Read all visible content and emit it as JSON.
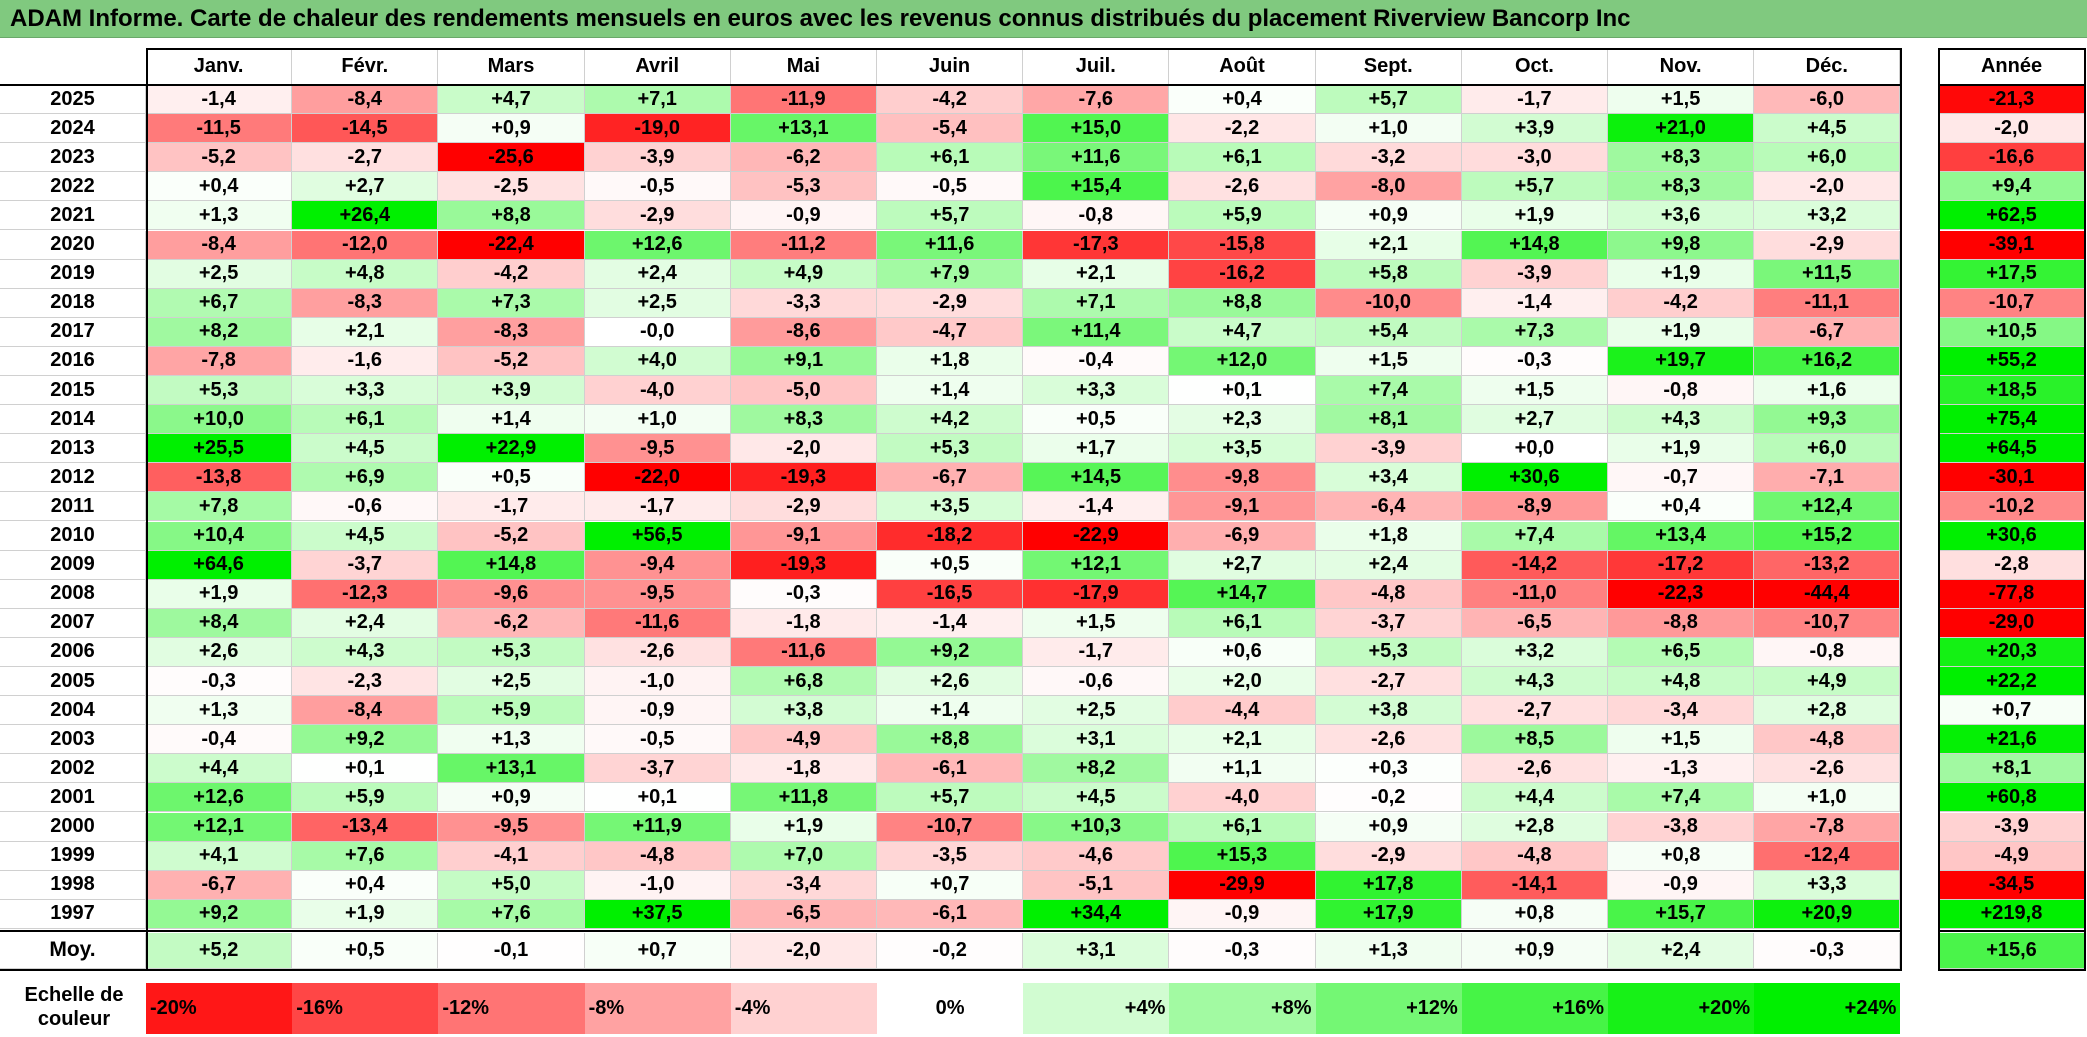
{
  "title": "ADAM Informe. Carte de chaleur des rendements mensuels en euros avec les revenus connus distribués du placement Riverview Bancorp Inc",
  "chart_data": {
    "type": "heatmap",
    "title": "ADAM Informe. Carte de chaleur des rendements mensuels en euros avec les revenus connus distribués du placement Riverview Bancorp Inc",
    "columns": [
      "Janv.",
      "Févr.",
      "Mars",
      "Avril",
      "Mai",
      "Juin",
      "Juil.",
      "Août",
      "Sept.",
      "Oct.",
      "Nov.",
      "Déc."
    ],
    "annual_header": "Année",
    "average_label": "Moy.",
    "rows": [
      {
        "year": "2025",
        "values": [
          "-1,4",
          "-8,4",
          "+4,7",
          "+7,1",
          "-11,9",
          "-4,2",
          "-7,6",
          "+0,4",
          "+5,7",
          "-1,7",
          "+1,5",
          "-6,0"
        ],
        "annual": "-21,3"
      },
      {
        "year": "2024",
        "values": [
          "-11,5",
          "-14,5",
          "+0,9",
          "-19,0",
          "+13,1",
          "-5,4",
          "+15,0",
          "-2,2",
          "+1,0",
          "+3,9",
          "+21,0",
          "+4,5"
        ],
        "annual": "-2,0"
      },
      {
        "year": "2023",
        "values": [
          "-5,2",
          "-2,7",
          "-25,6",
          "-3,9",
          "-6,2",
          "+6,1",
          "+11,6",
          "+6,1",
          "-3,2",
          "-3,0",
          "+8,3",
          "+6,0"
        ],
        "annual": "-16,6"
      },
      {
        "year": "2022",
        "values": [
          "+0,4",
          "+2,7",
          "-2,5",
          "-0,5",
          "-5,3",
          "-0,5",
          "+15,4",
          "-2,6",
          "-8,0",
          "+5,7",
          "+8,3",
          "-2,0"
        ],
        "annual": "+9,4"
      },
      {
        "year": "2021",
        "values": [
          "+1,3",
          "+26,4",
          "+8,8",
          "-2,9",
          "-0,9",
          "+5,7",
          "-0,8",
          "+5,9",
          "+0,9",
          "+1,9",
          "+3,6",
          "+3,2"
        ],
        "annual": "+62,5"
      },
      {
        "year": "2020",
        "values": [
          "-8,4",
          "-12,0",
          "-22,4",
          "+12,6",
          "-11,2",
          "+11,6",
          "-17,3",
          "-15,8",
          "+2,1",
          "+14,8",
          "+9,8",
          "-2,9"
        ],
        "annual": "-39,1"
      },
      {
        "year": "2019",
        "values": [
          "+2,5",
          "+4,8",
          "-4,2",
          "+2,4",
          "+4,9",
          "+7,9",
          "+2,1",
          "-16,2",
          "+5,8",
          "-3,9",
          "+1,9",
          "+11,5"
        ],
        "annual": "+17,5"
      },
      {
        "year": "2018",
        "values": [
          "+6,7",
          "-8,3",
          "+7,3",
          "+2,5",
          "-3,3",
          "-2,9",
          "+7,1",
          "+8,8",
          "-10,0",
          "-1,4",
          "-4,2",
          "-11,1"
        ],
        "annual": "-10,7"
      },
      {
        "year": "2017",
        "values": [
          "+8,2",
          "+2,1",
          "-8,3",
          "-0,0",
          "-8,6",
          "-4,7",
          "+11,4",
          "+4,7",
          "+5,4",
          "+7,3",
          "+1,9",
          "-6,7"
        ],
        "annual": "+10,5"
      },
      {
        "year": "2016",
        "values": [
          "-7,8",
          "-1,6",
          "-5,2",
          "+4,0",
          "+9,1",
          "+1,8",
          "-0,4",
          "+12,0",
          "+1,5",
          "-0,3",
          "+19,7",
          "+16,2"
        ],
        "annual": "+55,2"
      },
      {
        "year": "2015",
        "values": [
          "+5,3",
          "+3,3",
          "+3,9",
          "-4,0",
          "-5,0",
          "+1,4",
          "+3,3",
          "+0,1",
          "+7,4",
          "+1,5",
          "-0,8",
          "+1,6"
        ],
        "annual": "+18,5"
      },
      {
        "year": "2014",
        "values": [
          "+10,0",
          "+6,1",
          "+1,4",
          "+1,0",
          "+8,3",
          "+4,2",
          "+0,5",
          "+2,3",
          "+8,1",
          "+2,7",
          "+4,3",
          "+9,3"
        ],
        "annual": "+75,4"
      },
      {
        "year": "2013",
        "values": [
          "+25,5",
          "+4,5",
          "+22,9",
          "-9,5",
          "-2,0",
          "+5,3",
          "+1,7",
          "+3,5",
          "-3,9",
          "+0,0",
          "+1,9",
          "+6,0"
        ],
        "annual": "+64,5"
      },
      {
        "year": "2012",
        "values": [
          "-13,8",
          "+6,9",
          "+0,5",
          "-22,0",
          "-19,3",
          "-6,7",
          "+14,5",
          "-9,8",
          "+3,4",
          "+30,6",
          "-0,7",
          "-7,1"
        ],
        "annual": "-30,1"
      },
      {
        "year": "2011",
        "values": [
          "+7,8",
          "-0,6",
          "-1,7",
          "-1,7",
          "-2,9",
          "+3,5",
          "-1,4",
          "-9,1",
          "-6,4",
          "-8,9",
          "+0,4",
          "+12,4"
        ],
        "annual": "-10,2"
      },
      {
        "year": "2010",
        "values": [
          "+10,4",
          "+4,5",
          "-5,2",
          "+56,5",
          "-9,1",
          "-18,2",
          "-22,9",
          "-6,9",
          "+1,8",
          "+7,4",
          "+13,4",
          "+15,2"
        ],
        "annual": "+30,6"
      },
      {
        "year": "2009",
        "values": [
          "+64,6",
          "-3,7",
          "+14,8",
          "-9,4",
          "-19,3",
          "+0,5",
          "+12,1",
          "+2,7",
          "+2,4",
          "-14,2",
          "-17,2",
          "-13,2"
        ],
        "annual": "-2,8"
      },
      {
        "year": "2008",
        "values": [
          "+1,9",
          "-12,3",
          "-9,6",
          "-9,5",
          "-0,3",
          "-16,5",
          "-17,9",
          "+14,7",
          "-4,8",
          "-11,0",
          "-22,3",
          "-44,4"
        ],
        "annual": "-77,8"
      },
      {
        "year": "2007",
        "values": [
          "+8,4",
          "+2,4",
          "-6,2",
          "-11,6",
          "-1,8",
          "-1,4",
          "+1,5",
          "+6,1",
          "-3,7",
          "-6,5",
          "-8,8",
          "-10,7"
        ],
        "annual": "-29,0"
      },
      {
        "year": "2006",
        "values": [
          "+2,6",
          "+4,3",
          "+5,3",
          "-2,6",
          "-11,6",
          "+9,2",
          "-1,7",
          "+0,6",
          "+5,3",
          "+3,2",
          "+6,5",
          "-0,8"
        ],
        "annual": "+20,3"
      },
      {
        "year": "2005",
        "values": [
          "-0,3",
          "-2,3",
          "+2,5",
          "-1,0",
          "+6,8",
          "+2,6",
          "-0,6",
          "+2,0",
          "-2,7",
          "+4,3",
          "+4,8",
          "+4,9"
        ],
        "annual": "+22,2"
      },
      {
        "year": "2004",
        "values": [
          "+1,3",
          "-8,4",
          "+5,9",
          "-0,9",
          "+3,8",
          "+1,4",
          "+2,5",
          "-4,4",
          "+3,8",
          "-2,7",
          "-3,4",
          "+2,8"
        ],
        "annual": "+0,7"
      },
      {
        "year": "2003",
        "values": [
          "-0,4",
          "+9,2",
          "+1,3",
          "-0,5",
          "-4,9",
          "+8,8",
          "+3,1",
          "+2,1",
          "-2,6",
          "+8,5",
          "+1,5",
          "-4,8"
        ],
        "annual": "+21,6"
      },
      {
        "year": "2002",
        "values": [
          "+4,4",
          "+0,1",
          "+13,1",
          "-3,7",
          "-1,8",
          "-6,1",
          "+8,2",
          "+1,1",
          "+0,3",
          "-2,6",
          "-1,3",
          "-2,6"
        ],
        "annual": "+8,1"
      },
      {
        "year": "2001",
        "values": [
          "+12,6",
          "+5,9",
          "+0,9",
          "+0,1",
          "+11,8",
          "+5,7",
          "+4,5",
          "-4,0",
          "-0,2",
          "+4,4",
          "+7,4",
          "+1,0"
        ],
        "annual": "+60,8"
      },
      {
        "year": "2000",
        "values": [
          "+12,1",
          "-13,4",
          "-9,5",
          "+11,9",
          "+1,9",
          "-10,7",
          "+10,3",
          "+6,1",
          "+0,9",
          "+2,8",
          "-3,8",
          "-7,8"
        ],
        "annual": "-3,9"
      },
      {
        "year": "1999",
        "values": [
          "+4,1",
          "+7,6",
          "-4,1",
          "-4,8",
          "+7,0",
          "-3,5",
          "-4,6",
          "+15,3",
          "-2,9",
          "-4,8",
          "+0,8",
          "-12,4"
        ],
        "annual": "-4,9"
      },
      {
        "year": "1998",
        "values": [
          "-6,7",
          "+0,4",
          "+5,0",
          "-1,0",
          "-3,4",
          "+0,7",
          "-5,1",
          "-29,9",
          "+17,8",
          "-14,1",
          "-0,9",
          "+3,3"
        ],
        "annual": "-34,5"
      },
      {
        "year": "1997",
        "values": [
          "+9,2",
          "+1,9",
          "+7,6",
          "+37,5",
          "-6,5",
          "-6,1",
          "+34,4",
          "-0,9",
          "+17,9",
          "+0,8",
          "+15,7",
          "+20,9"
        ],
        "annual": "+219,8"
      }
    ],
    "averages": [
      "+5,2",
      "+0,5",
      "-0,1",
      "+0,7",
      "-2,0",
      "-0,2",
      "+3,1",
      "-0,3",
      "+1,3",
      "+0,9",
      "+2,4",
      "-0,3"
    ],
    "average_annual": "+15,6",
    "color_scale": {
      "label": "Echelle de couleur",
      "stops": [
        "-20%",
        "-16%",
        "-12%",
        "-8%",
        "-4%",
        "0%",
        "+4%",
        "+8%",
        "+12%",
        "+16%",
        "+20%",
        "+24%"
      ],
      "stop_values": [
        -20,
        -16,
        -12,
        -8,
        -4,
        0,
        4,
        8,
        12,
        16,
        20,
        24
      ],
      "negative_color": "#ff0000",
      "positive_color": "#00ee00",
      "neutral_color": "#ffffff"
    }
  }
}
